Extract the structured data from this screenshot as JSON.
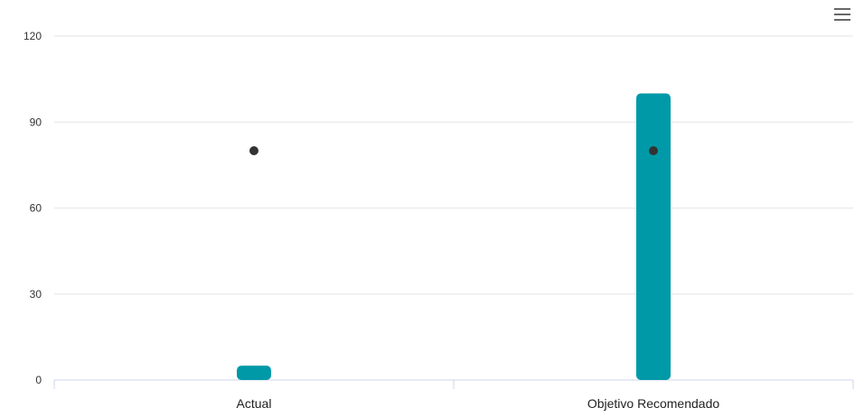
{
  "chart_data": {
    "type": "bar",
    "categories": [
      "Actual",
      "Objetivo Recomendado"
    ],
    "series": [
      {
        "type": "bar",
        "values": [
          5,
          100
        ]
      },
      {
        "type": "scatter",
        "values": [
          80,
          80
        ]
      }
    ],
    "y_ticks": [
      "0",
      "30",
      "60",
      "90",
      "120"
    ],
    "ylim": [
      0,
      120
    ],
    "grid": true,
    "legend": "none"
  },
  "colors": {
    "bar": "#0099a8",
    "marker": "#333333",
    "grid": "#e6e6e6",
    "axis": "#ccd6eb",
    "menu_icon": "#666666"
  },
  "toolbar": {
    "menu_icon": "hamburger-menu-icon"
  }
}
